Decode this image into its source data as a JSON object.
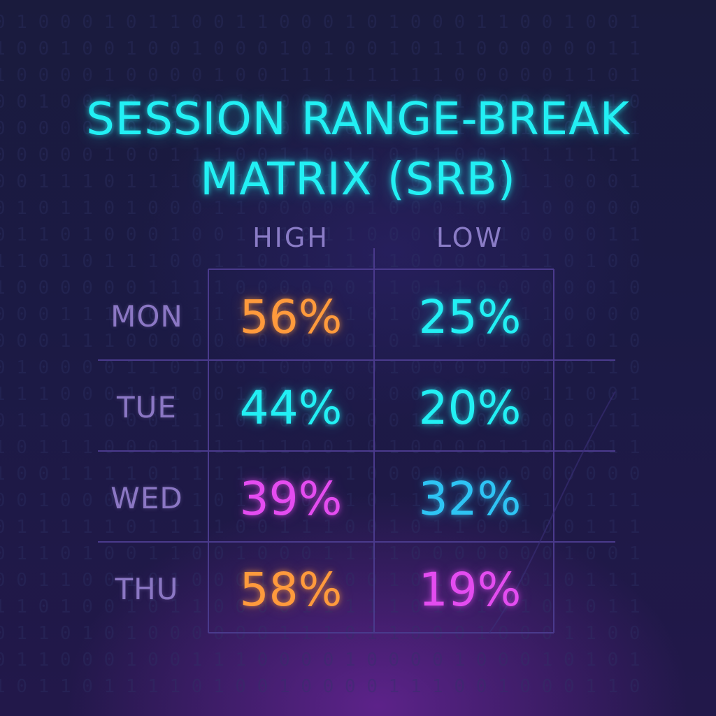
{
  "title_lines": [
    "SESSION RANGE-BREAK",
    "MATRIX (SRB)"
  ],
  "chart_data": {
    "type": "table",
    "title": "SESSION RANGE-BREAK MATRIX (SRB)",
    "columns": [
      "HIGH",
      "LOW"
    ],
    "rows": [
      "MON",
      "TUE",
      "WED",
      "THU"
    ],
    "values": [
      [
        56,
        25
      ],
      [
        44,
        20
      ],
      [
        39,
        32
      ],
      [
        58,
        19
      ]
    ],
    "unit": "%",
    "cell_labels": [
      [
        "56%",
        "25%"
      ],
      [
        "44%",
        "20%"
      ],
      [
        "39%",
        "32%"
      ],
      [
        "58%",
        "19%"
      ]
    ],
    "cell_colors": [
      [
        "#ff9a3c",
        "#22f0f4"
      ],
      [
        "#22f0f4",
        "#22f0f4"
      ],
      [
        "#e44cf0",
        "#2ec4f4"
      ],
      [
        "#ff9a3c",
        "#e44cf0"
      ]
    ],
    "grid": true
  },
  "colors": {
    "title": "#22f0f4",
    "header": "#8a7cc6",
    "row_label": "#8b77c4",
    "grid_line": "#4a3a8c",
    "background": "#1a1b3d"
  }
}
